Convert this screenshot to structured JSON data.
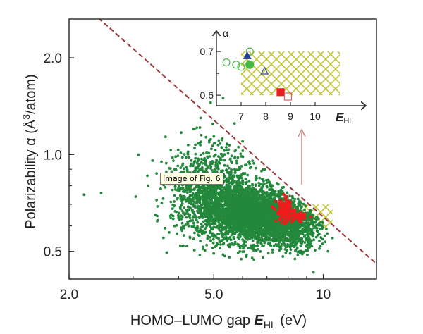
{
  "tooltip": "Image of Fig. 6",
  "chart_data": {
    "type": "scatter",
    "xscale": "log",
    "yscale": "log",
    "xlim": [
      2.0,
      14.0
    ],
    "ylim": [
      0.41,
      2.64
    ],
    "xticks": [
      {
        "v": 2.0,
        "label": "2.0"
      },
      {
        "v": 5.0,
        "label": "5.0"
      },
      {
        "v": 10,
        "label": "10"
      }
    ],
    "xminor": [
      3,
      4,
      6,
      7,
      8,
      9
    ],
    "yticks": [
      {
        "v": 0.5,
        "label": "0.5"
      },
      {
        "v": 1.0,
        "label": "1.0"
      },
      {
        "v": 2.0,
        "label": "2.0"
      }
    ],
    "yminor": [
      0.6,
      0.7,
      0.8,
      0.9
    ],
    "xlabel": {
      "pre": "HOMO–LUMO gap ",
      "sym": "E",
      "sub": "HL",
      "post": " (eV)"
    },
    "ylabel": {
      "pre": "Polarizability α (Å",
      "sup": "3",
      "post": "/atom)"
    },
    "bound_line": {
      "form": "alpha = k / E_HL",
      "k": 6.4,
      "color": "#9b3636"
    },
    "colors": {
      "all": "#23883c",
      "selected": "#ee1c1c",
      "hatch": "#c2c436",
      "arrow": "#cf8585"
    },
    "clusters_all": [
      {
        "E": 6.3,
        "alpha": 0.655,
        "sdlogE": 0.055,
        "sdlogA": 0.045,
        "n": 2600
      },
      {
        "E": 4.8,
        "alpha": 0.74,
        "sdlogE": 0.05,
        "sdlogA": 0.065,
        "n": 900
      },
      {
        "E": 8.2,
        "alpha": 0.6,
        "sdlogE": 0.04,
        "sdlogA": 0.035,
        "n": 900
      },
      {
        "E": 5.4,
        "alpha": 0.85,
        "sdlogE": 0.08,
        "sdlogA": 0.08,
        "n": 350
      }
    ],
    "outliers_all": [
      [
        2.2,
        0.75
      ],
      [
        2.45,
        0.76
      ],
      [
        3.05,
        0.74
      ],
      [
        3.3,
        0.8
      ],
      [
        3.5,
        0.69
      ],
      [
        3.7,
        0.85
      ],
      [
        3.9,
        0.9
      ],
      [
        4.1,
        0.98
      ],
      [
        4.6,
        1.3
      ],
      [
        4.9,
        1.45
      ],
      [
        5.3,
        1.5
      ],
      [
        5.7,
        1.25
      ],
      [
        6.0,
        1.1
      ],
      [
        9.4,
        0.43
      ],
      [
        10.3,
        0.5
      ],
      [
        10.6,
        0.55
      ]
    ],
    "clusters_selected": [
      {
        "E": 7.85,
        "alpha": 0.668,
        "sdlogE": 0.012,
        "sdlogA": 0.018,
        "n": 140
      },
      {
        "E": 8.5,
        "alpha": 0.638,
        "sdlogE": 0.01,
        "sdlogA": 0.008,
        "n": 50
      }
    ],
    "target_region": {
      "E": [
        7.0,
        10.6
      ],
      "alpha": [
        0.59,
        0.7
      ]
    },
    "inset": {
      "xlabel": {
        "sym": "E",
        "sub": "HL"
      },
      "ylabel": "α",
      "xlim": [
        6.0,
        11.8
      ],
      "ylim": [
        0.576,
        0.75
      ],
      "xticks": [
        {
          "v": 7,
          "label": "7"
        },
        {
          "v": 8,
          "label": "8"
        },
        {
          "v": 9,
          "label": "9"
        },
        {
          "v": 10,
          "label": "10"
        }
      ],
      "yticks": [
        {
          "v": 0.6,
          "label": "0.6"
        },
        {
          "v": 0.7,
          "label": "0.7"
        }
      ],
      "yminor": [
        0.65
      ],
      "region": {
        "E": [
          7.0,
          11.0
        ],
        "alpha": [
          0.6,
          0.7
        ]
      },
      "points": [
        {
          "E": 6.4,
          "alpha": 0.675,
          "marker": "circle-open",
          "color": "#4bb84b"
        },
        {
          "E": 6.8,
          "alpha": 0.67,
          "marker": "circle-open",
          "color": "#4bb84b"
        },
        {
          "E": 7.0,
          "alpha": 0.665,
          "marker": "circle-open",
          "color": "#4bb84b"
        },
        {
          "E": 7.35,
          "alpha": 0.7,
          "marker": "circle-open",
          "color": "#4bb84b"
        },
        {
          "E": 7.35,
          "alpha": 0.67,
          "marker": "circle-filled",
          "color": "#43b843"
        },
        {
          "E": 7.25,
          "alpha": 0.69,
          "marker": "triangle-filled",
          "color": "#1f3f9a"
        },
        {
          "E": 7.95,
          "alpha": 0.655,
          "marker": "triangle-open",
          "color": "#3a4a8a"
        },
        {
          "E": 8.6,
          "alpha": 0.607,
          "marker": "square-filled",
          "color": "#e81c1c"
        },
        {
          "E": 8.9,
          "alpha": 0.597,
          "marker": "square-open",
          "color": "#e06060"
        }
      ]
    }
  }
}
